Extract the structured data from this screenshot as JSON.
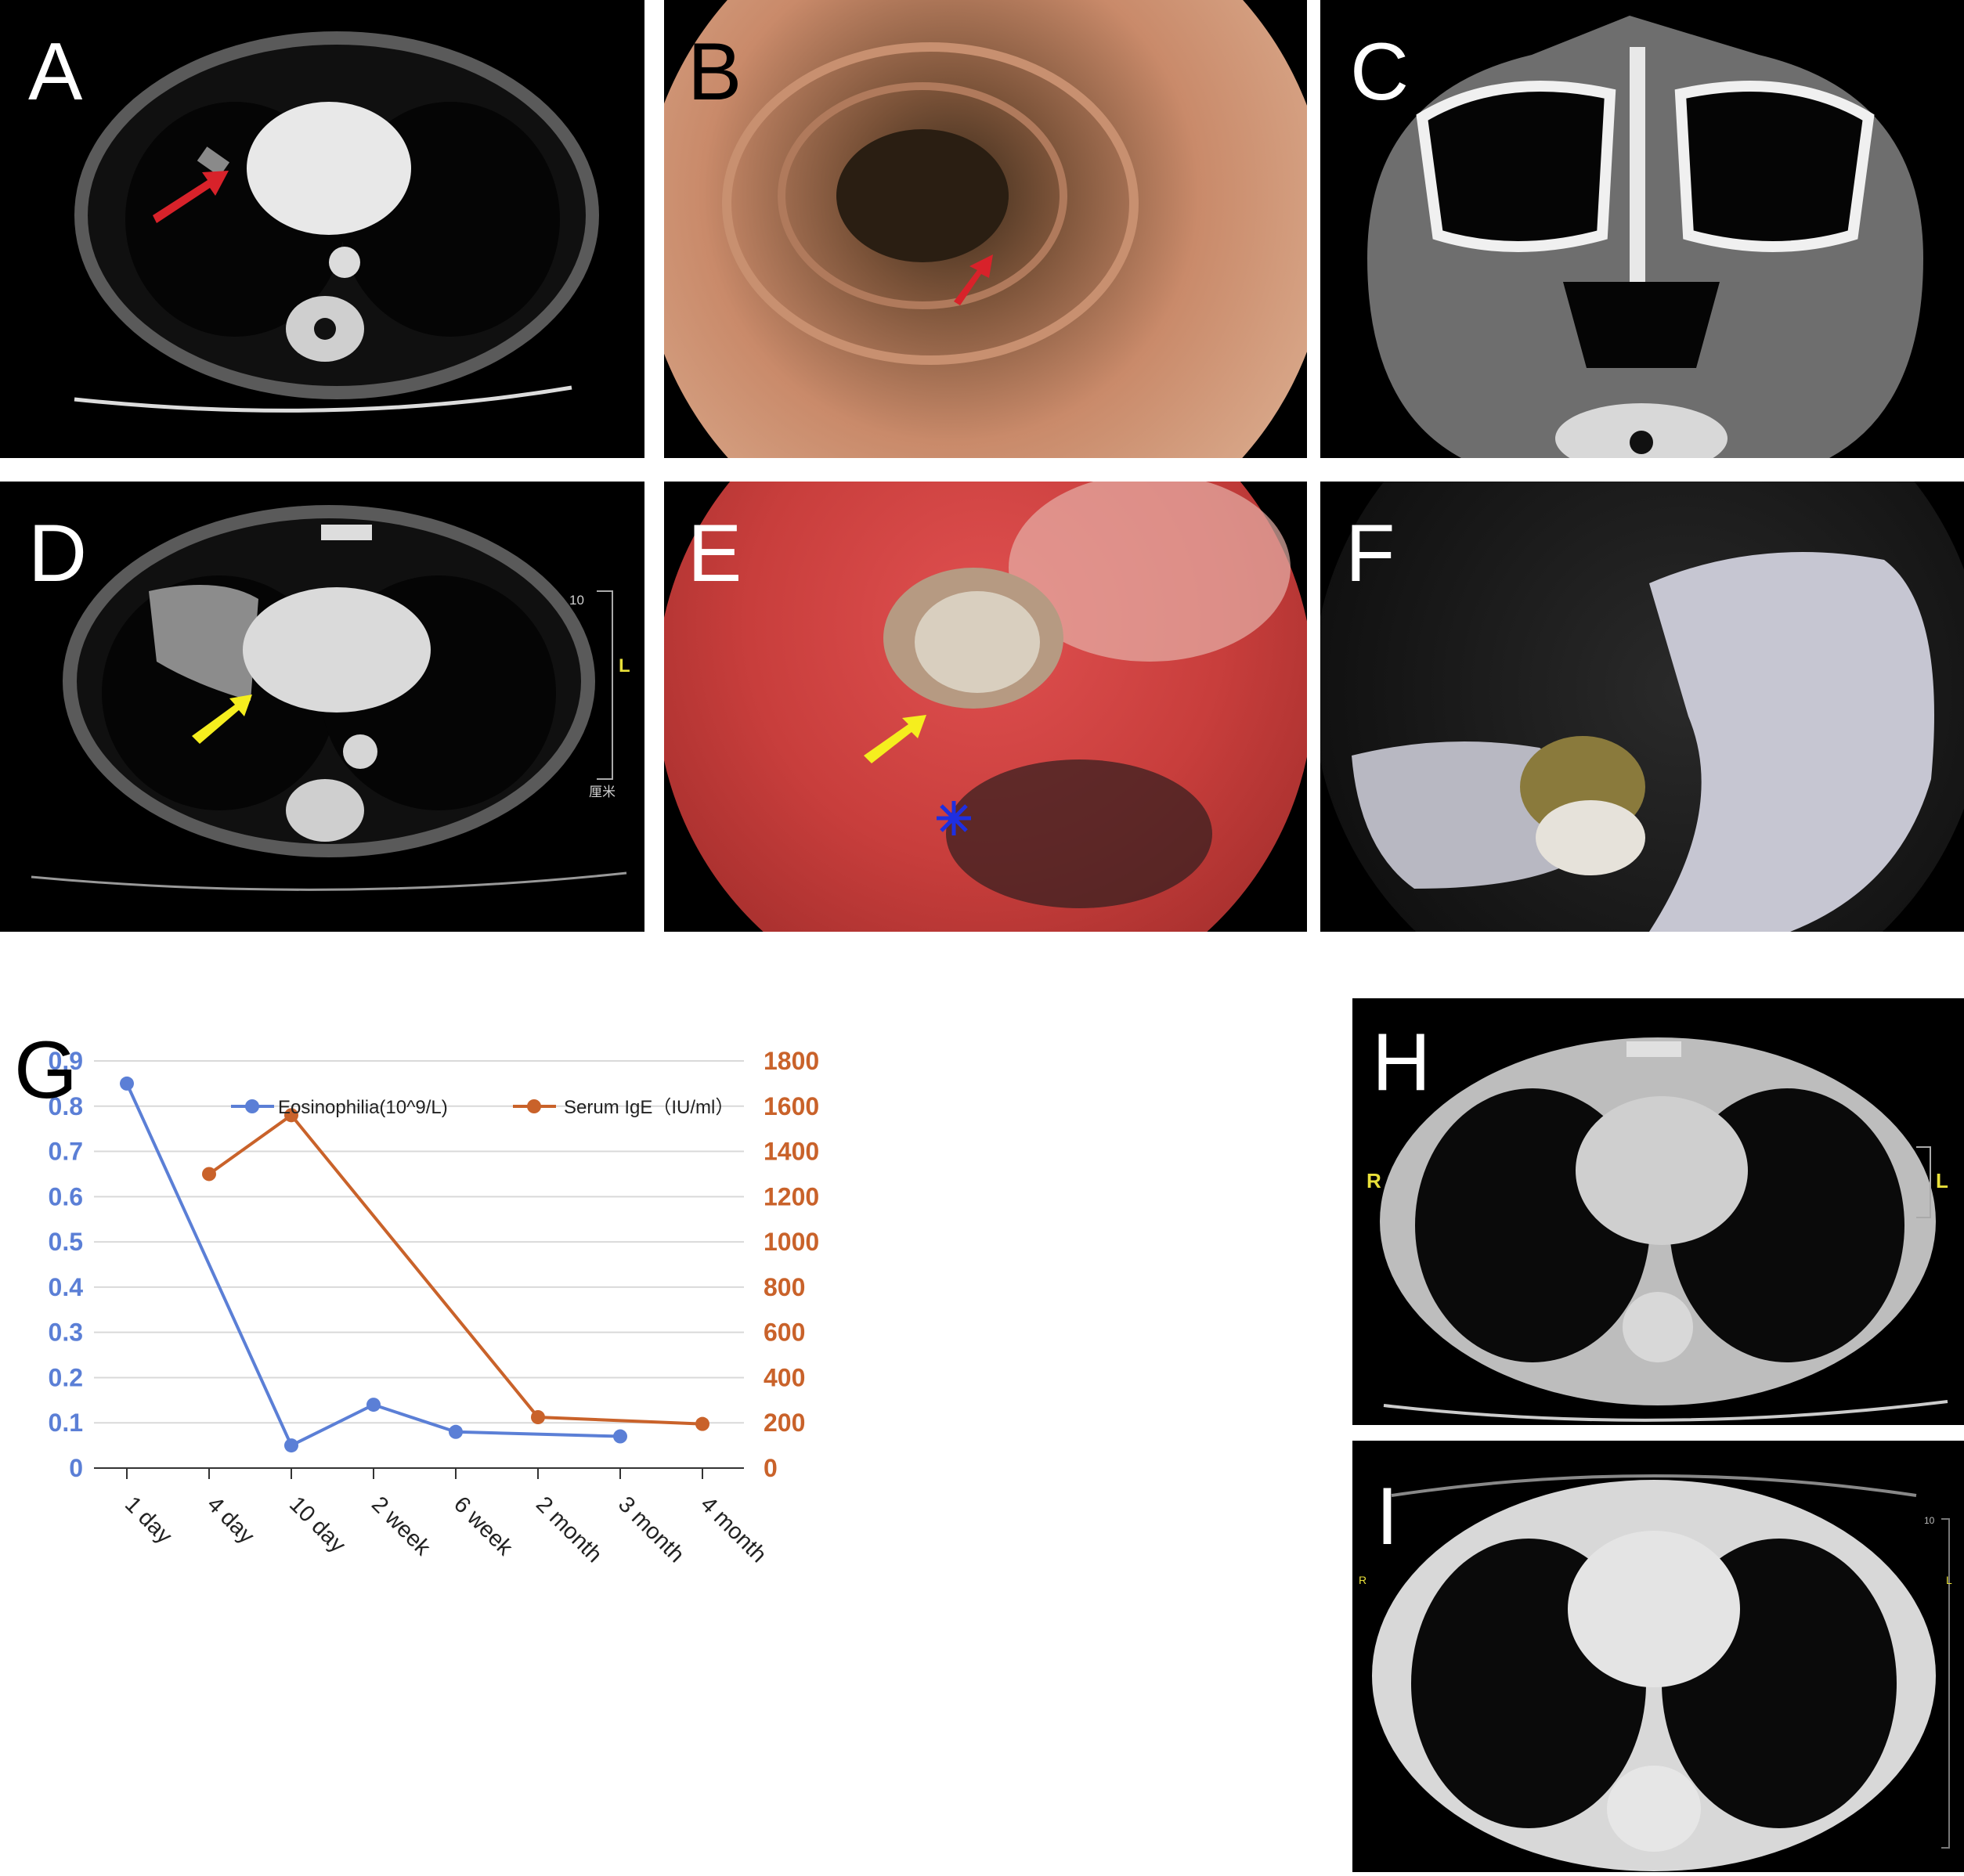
{
  "panels": [
    {
      "id": "A",
      "label": "A",
      "kind": "CT scan, axial chest, contrast"
    },
    {
      "id": "B",
      "label": "B",
      "kind": "bronchoscopy view"
    },
    {
      "id": "C",
      "label": "C",
      "kind": "CT scan, sinuses"
    },
    {
      "id": "D",
      "label": "D",
      "kind": "CT scan, axial chest",
      "scale_top": "10",
      "scale_side": "L",
      "scale_unit": "厘米"
    },
    {
      "id": "E",
      "label": "E",
      "kind": "bronchoscopy view with mucus plug"
    },
    {
      "id": "F",
      "label": "F",
      "kind": "extracted mucus plug held by gloved fingers"
    },
    {
      "id": "H",
      "label": "H",
      "kind": "CT scan, lung window",
      "left_mark": "R",
      "right_mark": "L"
    },
    {
      "id": "I",
      "label": "I",
      "kind": "CT scan, lung window",
      "left_mark": "R",
      "right_mark": "L",
      "scale_top": "10"
    }
  ],
  "colors": {
    "eosinophilia": "#5b7fd6",
    "ige": "#c9622a",
    "arrow_red": "#d8222a",
    "arrow_yellow": "#f5ee1e",
    "star_blue": "#1f2fe0"
  },
  "chart_data": {
    "panel_label": "G",
    "type": "line",
    "categories": [
      "1 day",
      "4 day",
      "10 day",
      "2 week",
      "6 week",
      "2 month",
      "3 month",
      "4 month"
    ],
    "series": [
      {
        "name": "Eosinophilia(10^9/L)",
        "axis": "left",
        "color": "#5b7fd6",
        "values": [
          0.85,
          null,
          0.05,
          0.14,
          0.08,
          null,
          0.07,
          null
        ]
      },
      {
        "name": "Serum IgE（IU/ml）",
        "axis": "right",
        "color": "#c9622a",
        "values": [
          null,
          1300,
          1560,
          null,
          null,
          225,
          null,
          195
        ]
      }
    ],
    "y_left": {
      "min": 0,
      "max": 0.9,
      "ticks": [
        "0",
        "0.1",
        "0.2",
        "0.3",
        "0.4",
        "0.5",
        "0.6",
        "0.7",
        "0.8",
        "0.9"
      ]
    },
    "y_right": {
      "min": 0,
      "max": 1800,
      "ticks": [
        "0",
        "200",
        "400",
        "600",
        "800",
        "1000",
        "1200",
        "1400",
        "1600",
        "1800"
      ]
    },
    "grid": true,
    "legend_position": "top"
  }
}
